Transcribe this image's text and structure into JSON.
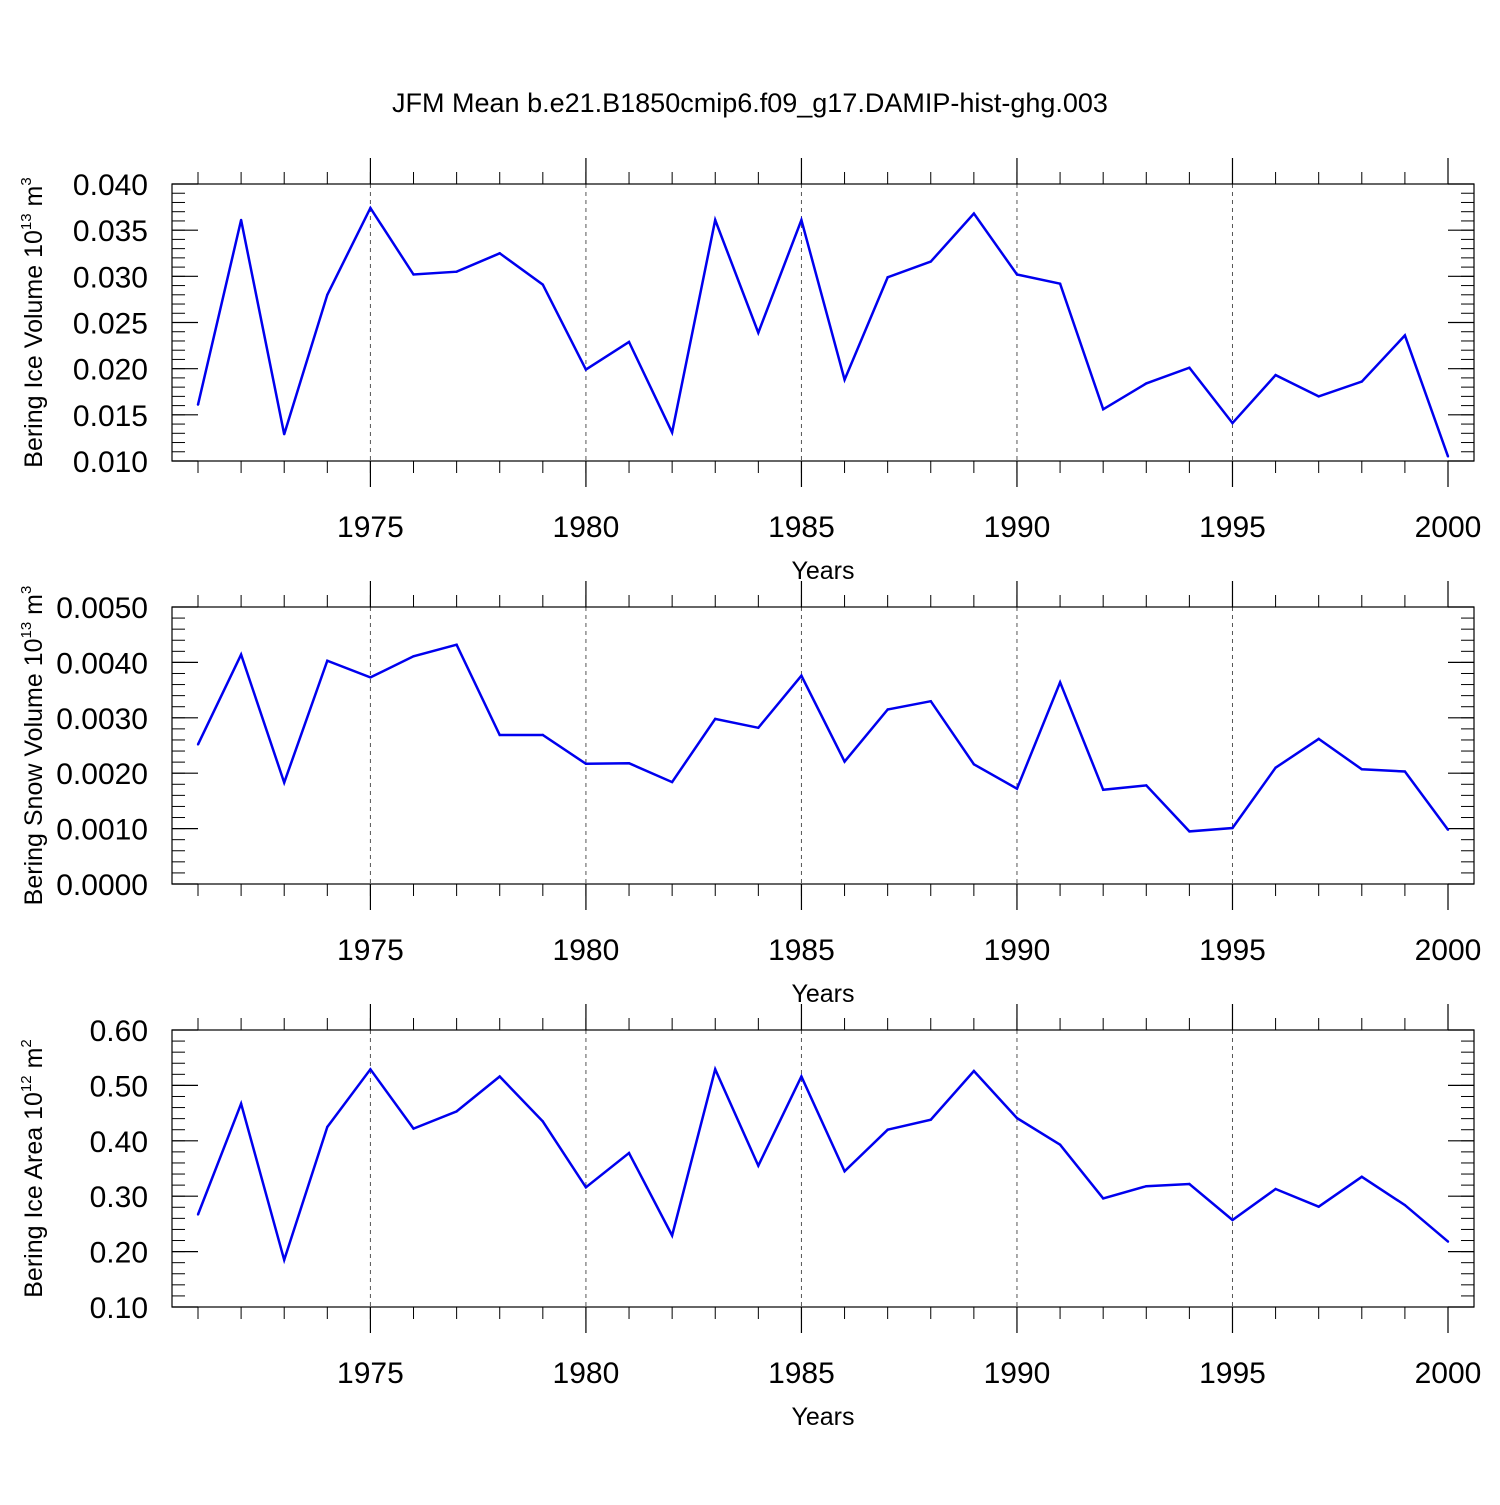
{
  "title": "JFM Mean b.e21.B1850cmip6.f09_g17.DAMIP-hist-ghg.003",
  "colors": {
    "line": "#0000ee",
    "axis": "#000000",
    "grid": "#555555"
  },
  "chart_data": [
    {
      "type": "line",
      "ylabel": {
        "prefix": "Bering Ice Volume 10",
        "exp": "13",
        "unit": " m",
        "unit_exp": "3"
      },
      "xlabel": "Years",
      "xlim": [
        1971,
        2000
      ],
      "ylim": [
        0.01,
        0.04
      ],
      "yticks": [
        0.01,
        0.015,
        0.02,
        0.025,
        0.03,
        0.035,
        0.04
      ],
      "ytick_labels": [
        "0.010",
        "0.015",
        "0.020",
        "0.025",
        "0.030",
        "0.035",
        "0.040"
      ],
      "yminor": 0.001,
      "xticks": [
        1975,
        1980,
        1985,
        1990,
        1995,
        2000
      ],
      "xtick_labels": [
        "1975",
        "1980",
        "1985",
        "1990",
        "1995",
        "2000"
      ],
      "grid_x": [
        1975,
        1980,
        1985,
        1990,
        1995
      ],
      "x": [
        1971,
        1972,
        1973,
        1974,
        1975,
        1976,
        1977,
        1978,
        1979,
        1980,
        1981,
        1982,
        1983,
        1984,
        1985,
        1986,
        1987,
        1988,
        1989,
        1990,
        1991,
        1992,
        1993,
        1994,
        1995,
        1996,
        1997,
        1998,
        1999,
        2000
      ],
      "values": [
        0.0161,
        0.0361,
        0.0129,
        0.028,
        0.0374,
        0.0302,
        0.0305,
        0.0325,
        0.0291,
        0.0199,
        0.0229,
        0.0131,
        0.0361,
        0.0239,
        0.0361,
        0.0188,
        0.0299,
        0.0316,
        0.0368,
        0.0302,
        0.0292,
        0.0156,
        0.0184,
        0.0201,
        0.0141,
        0.0193,
        0.017,
        0.0186,
        0.0236,
        0.0105
      ]
    },
    {
      "type": "line",
      "ylabel": {
        "prefix": "Bering Snow Volume 10",
        "exp": "13",
        "unit": " m",
        "unit_exp": "3"
      },
      "xlabel": "Years",
      "xlim": [
        1971,
        2000
      ],
      "ylim": [
        0.0,
        0.005
      ],
      "yticks": [
        0.0,
        0.001,
        0.002,
        0.003,
        0.004,
        0.005
      ],
      "ytick_labels": [
        "0.0000",
        "0.0010",
        "0.0020",
        "0.0030",
        "0.0040",
        "0.0050"
      ],
      "yminor": 0.0002,
      "xticks": [
        1975,
        1980,
        1985,
        1990,
        1995,
        2000
      ],
      "xtick_labels": [
        "1975",
        "1980",
        "1985",
        "1990",
        "1995",
        "2000"
      ],
      "grid_x": [
        1975,
        1980,
        1985,
        1990,
        1995
      ],
      "x": [
        1971,
        1972,
        1973,
        1974,
        1975,
        1976,
        1977,
        1978,
        1979,
        1980,
        1981,
        1982,
        1983,
        1984,
        1985,
        1986,
        1987,
        1988,
        1989,
        1990,
        1991,
        1992,
        1993,
        1994,
        1995,
        1996,
        1997,
        1998,
        1999,
        2000
      ],
      "values": [
        0.00252,
        0.00414,
        0.00183,
        0.00403,
        0.00373,
        0.00411,
        0.00432,
        0.00269,
        0.00269,
        0.00217,
        0.00218,
        0.00184,
        0.00298,
        0.00282,
        0.00376,
        0.00221,
        0.00315,
        0.0033,
        0.00216,
        0.00172,
        0.00364,
        0.0017,
        0.00178,
        0.00095,
        0.00101,
        0.0021,
        0.00262,
        0.00207,
        0.00203,
        0.00098
      ]
    },
    {
      "type": "line",
      "ylabel": {
        "prefix": "Bering Ice Area 10",
        "exp": "12",
        "unit": " m",
        "unit_exp": "2"
      },
      "xlabel": "Years",
      "xlim": [
        1971,
        2000
      ],
      "ylim": [
        0.1,
        0.6
      ],
      "yticks": [
        0.1,
        0.2,
        0.3,
        0.4,
        0.5,
        0.6
      ],
      "ytick_labels": [
        "0.10",
        "0.20",
        "0.30",
        "0.40",
        "0.50",
        "0.60"
      ],
      "yminor": 0.02,
      "xticks": [
        1975,
        1980,
        1985,
        1990,
        1995,
        2000
      ],
      "xtick_labels": [
        "1975",
        "1980",
        "1985",
        "1990",
        "1995",
        "2000"
      ],
      "grid_x": [
        1975,
        1980,
        1985,
        1990,
        1995
      ],
      "x": [
        1971,
        1972,
        1973,
        1974,
        1975,
        1976,
        1977,
        1978,
        1979,
        1980,
        1981,
        1982,
        1983,
        1984,
        1985,
        1986,
        1987,
        1988,
        1989,
        1990,
        1991,
        1992,
        1993,
        1994,
        1995,
        1996,
        1997,
        1998,
        1999,
        2000
      ],
      "values": [
        0.267,
        0.467,
        0.185,
        0.425,
        0.529,
        0.422,
        0.453,
        0.516,
        0.435,
        0.316,
        0.378,
        0.229,
        0.529,
        0.355,
        0.516,
        0.345,
        0.42,
        0.438,
        0.526,
        0.441,
        0.393,
        0.296,
        0.318,
        0.322,
        0.257,
        0.313,
        0.281,
        0.335,
        0.284,
        0.218
      ]
    }
  ]
}
